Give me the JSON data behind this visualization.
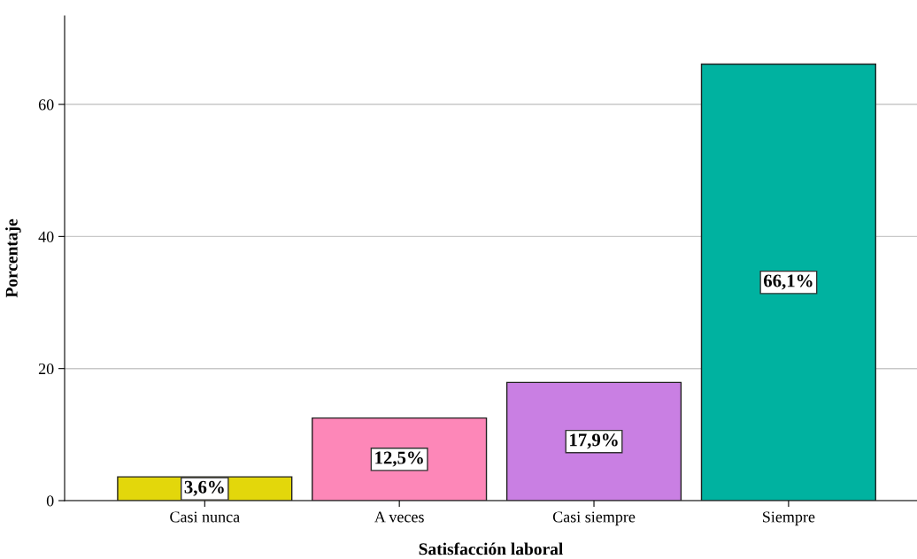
{
  "chart_data": {
    "type": "bar",
    "xlabel": "Satisfacción laboral",
    "ylabel": "Porcentaje",
    "categories": [
      "Casi nunca",
      "A veces",
      "Casi siempre",
      "Siempre"
    ],
    "values": [
      3.6,
      12.5,
      17.9,
      66.1
    ],
    "colors": [
      "#e3d70b",
      "#fd87b8",
      "#c97fe3",
      "#00b2a0"
    ],
    "value_labels": [
      "3,6%",
      "12,5%",
      "17,9%",
      "66,1%"
    ],
    "ylim": [
      0,
      73.4
    ],
    "yticks": [
      0,
      20,
      40,
      60
    ],
    "grid": "y",
    "legend": false
  }
}
